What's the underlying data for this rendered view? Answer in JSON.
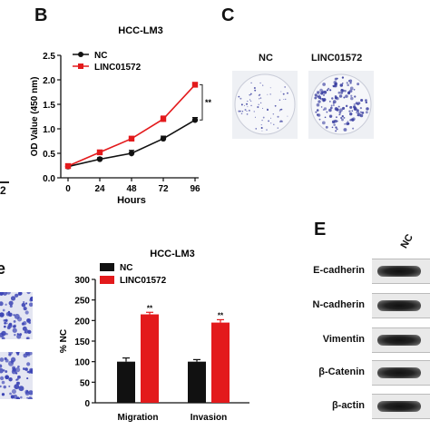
{
  "panels": {
    "B": "B",
    "C": "C",
    "E": "E",
    "D_fragment": "e",
    "left_fragment_tick": "2"
  },
  "colors": {
    "nc": "#111111",
    "linc": "#e31a1c",
    "dish_bg": "#eef0f4",
    "colony": "#3a3fa0",
    "transwell": "#3b44b5"
  },
  "chart_data": [
    {
      "id": "B",
      "type": "line",
      "title": "HCC-LM3",
      "xlabel": "Hours",
      "ylabel": "OD Value (450 nm)",
      "x": [
        0,
        24,
        48,
        72,
        96
      ],
      "xlim": [
        0,
        96
      ],
      "ylim": [
        0,
        2.5
      ],
      "yticks": [
        "0.0",
        "0.5",
        "1.0",
        "1.5",
        "2.0",
        "2.5"
      ],
      "xticks": [
        "0",
        "24",
        "48",
        "72",
        "96"
      ],
      "series": [
        {
          "name": "NC",
          "marker": "circle",
          "values": [
            0.23,
            0.38,
            0.5,
            0.8,
            1.18
          ],
          "errors": [
            0.03,
            0.03,
            0.06,
            0.05,
            0.05
          ]
        },
        {
          "name": "LINC01572",
          "marker": "square",
          "values": [
            0.24,
            0.52,
            0.8,
            1.2,
            1.9
          ],
          "errors": [
            0.03,
            0.04,
            0.03,
            0.06,
            0.04
          ]
        }
      ],
      "significance": "**",
      "legend": "top-left",
      "grid": false
    },
    {
      "id": "D",
      "type": "bar",
      "title": "HCC-LM3",
      "ylabel": "% NC",
      "categories": [
        "Migration",
        "Invasion"
      ],
      "ylim": [
        0,
        300
      ],
      "yticks": [
        "0",
        "50",
        "100",
        "150",
        "200",
        "250",
        "300"
      ],
      "series": [
        {
          "name": "NC",
          "values": [
            100,
            100
          ],
          "errors": [
            9,
            5
          ]
        },
        {
          "name": "LINC01572",
          "values": [
            215,
            195
          ],
          "errors": [
            5,
            7
          ]
        }
      ],
      "significance": [
        "**",
        "**"
      ],
      "legend": "top-left",
      "grid": false
    }
  ],
  "colony_panel": {
    "labels": [
      "NC",
      "LINC01572"
    ]
  },
  "western_blot": {
    "column_label": "NC",
    "rows": [
      "E-cadherin",
      "N-cadherin",
      "Vimentin",
      "β-Catenin",
      "β-actin"
    ]
  }
}
